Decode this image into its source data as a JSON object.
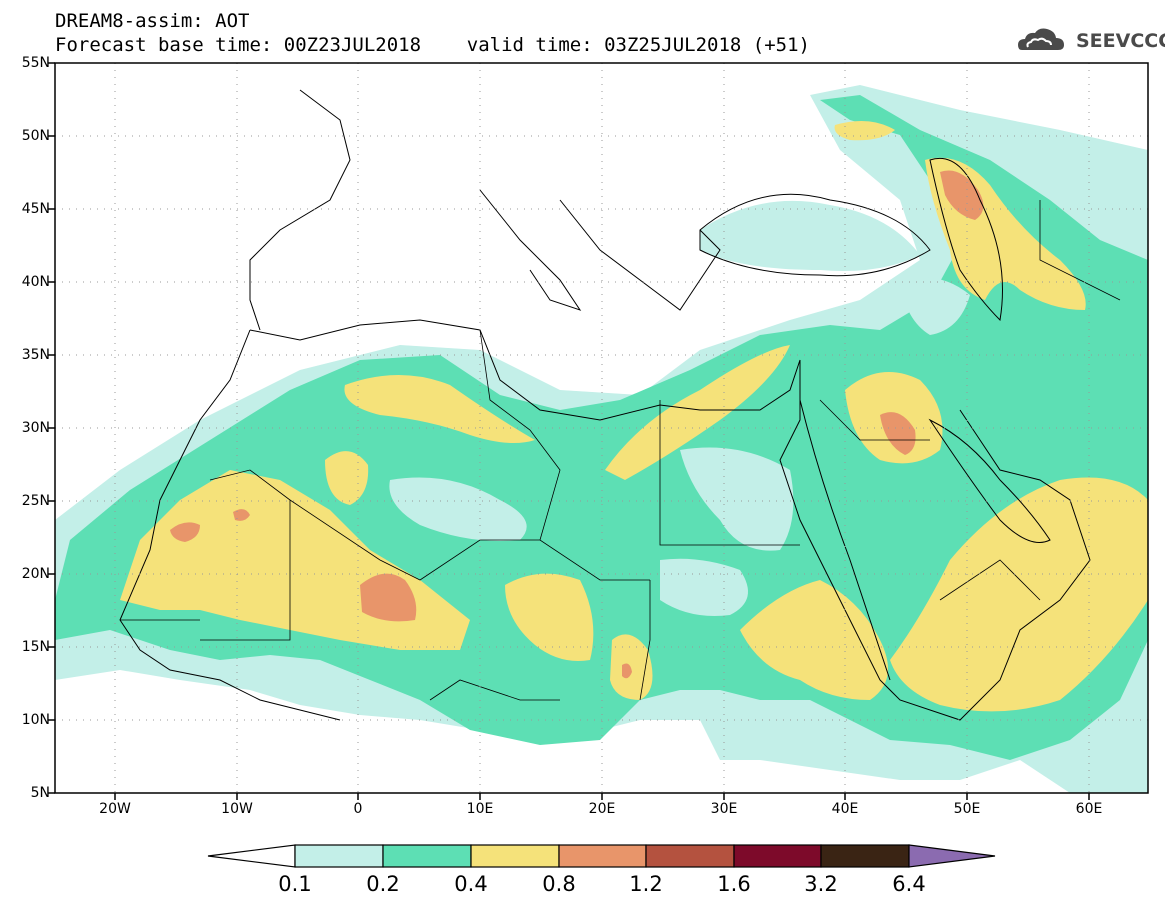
{
  "header": {
    "line1": "DREAM8-assim: AOT",
    "line2": "Forecast base time: 00Z23JUL2018    valid time: 03Z25JUL2018 (+51)"
  },
  "logo": {
    "text": "SEEVCCC",
    "icon": "cloud-icon"
  },
  "map": {
    "lat_labels": [
      "55N",
      "50N",
      "45N",
      "40N",
      "35N",
      "30N",
      "25N",
      "20N",
      "15N",
      "10N",
      "5N"
    ],
    "lon_labels": [
      "20W",
      "10W",
      "0",
      "10E",
      "20E",
      "30E",
      "40E",
      "50E",
      "60E"
    ],
    "lat_range": [
      5,
      55
    ],
    "lon_range": [
      -25,
      65
    ],
    "grid": "dotted"
  },
  "colorbar": {
    "levels": [
      "0.1",
      "0.2",
      "0.4",
      "0.8",
      "1.2",
      "1.6",
      "3.2",
      "6.4"
    ],
    "colors": [
      "#c3efe8",
      "#5ddfb4",
      "#f5e27a",
      "#e8956a",
      "#b4523f",
      "#7d0a2a",
      "#3a2414",
      "#8b6bb0"
    ],
    "under_color": "#ffffff"
  }
}
